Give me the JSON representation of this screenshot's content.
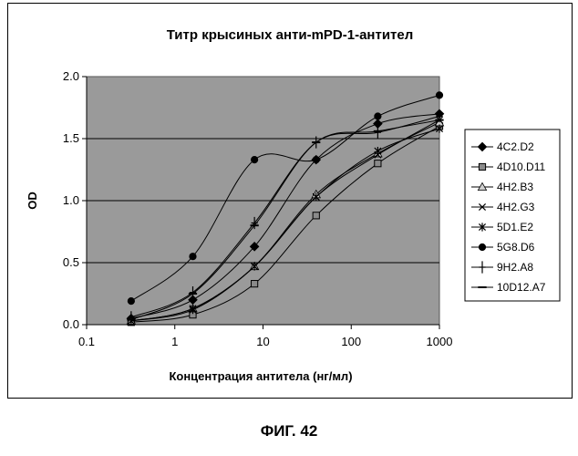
{
  "figure_caption": "ФИГ. 42",
  "chart_data": {
    "type": "line",
    "title": "Титр крысиных анти-mPD-1-антител",
    "xlabel": "Концентрация антитела (нг/мл)",
    "ylabel": "OD",
    "xscale": "log",
    "xlim": [
      0.1,
      1000
    ],
    "ylim": [
      0.0,
      2.0
    ],
    "x_ticks": [
      "0.1",
      "1",
      "10",
      "100",
      "1000"
    ],
    "y_ticks": [
      "0.0",
      "0.5",
      "1.0",
      "1.5",
      "2.0"
    ],
    "grid": "horizontal",
    "legend_position": "right",
    "plot_background": "#9a9a9a",
    "x": [
      0.32,
      1.6,
      8,
      40,
      200,
      1000
    ],
    "series": [
      {
        "name": "4C2.D2",
        "marker": "diamond",
        "values": [
          0.05,
          0.2,
          0.63,
          1.33,
          1.62,
          1.7
        ]
      },
      {
        "name": "4D10.D11",
        "marker": "square",
        "values": [
          0.02,
          0.08,
          0.33,
          0.88,
          1.3,
          1.6
        ]
      },
      {
        "name": "4H2.B3",
        "marker": "triangle",
        "values": [
          0.03,
          0.13,
          0.47,
          1.05,
          1.38,
          1.63
        ]
      },
      {
        "name": "4H2.G3",
        "marker": "x",
        "values": [
          0.03,
          0.13,
          0.47,
          1.03,
          1.37,
          1.65
        ]
      },
      {
        "name": "5D1.E2",
        "marker": "asterisk",
        "values": [
          0.03,
          0.12,
          0.47,
          1.03,
          1.4,
          1.58
        ]
      },
      {
        "name": "5G8.D6",
        "marker": "circle",
        "values": [
          0.19,
          0.55,
          1.33,
          1.33,
          1.68,
          1.85
        ]
      },
      {
        "name": "9H2.A8",
        "marker": "plus",
        "values": [
          0.06,
          0.26,
          0.82,
          1.47,
          1.55,
          1.68
        ]
      },
      {
        "name": "10D12.A7",
        "marker": "dash",
        "values": [
          0.04,
          0.25,
          0.8,
          1.47,
          1.56,
          1.65
        ]
      }
    ]
  }
}
